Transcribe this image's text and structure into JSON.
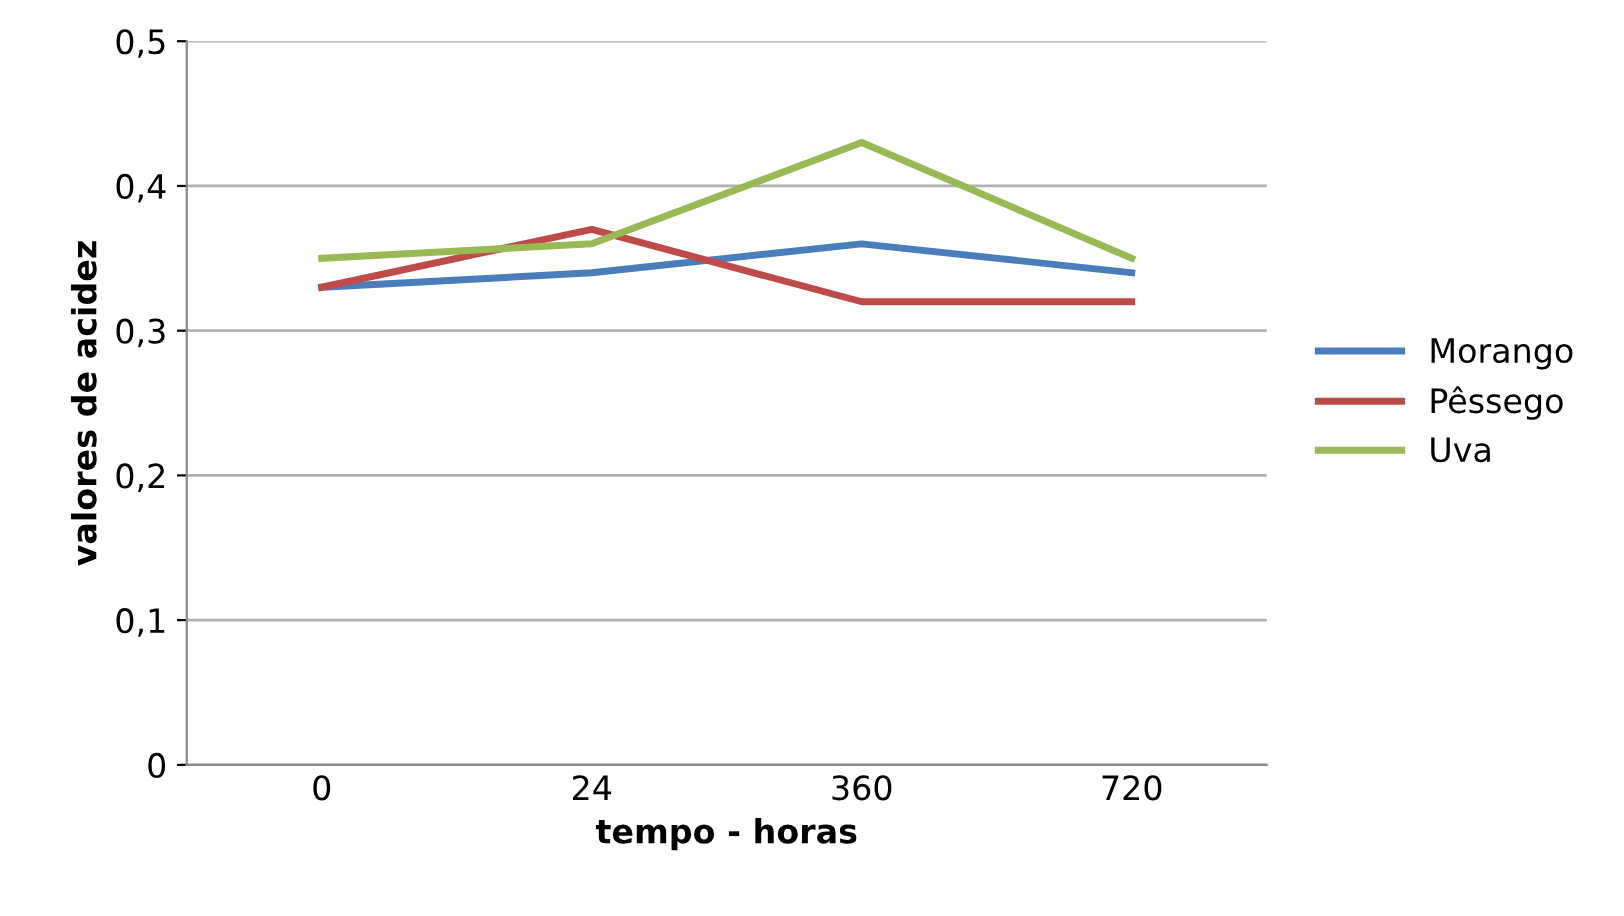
{
  "chart_data": {
    "type": "line",
    "xlabel": "tempo - horas",
    "ylabel": "valores de acidez",
    "categories": [
      "0",
      "24",
      "360",
      "720"
    ],
    "series": [
      {
        "name": "Morango",
        "color": "#4a7ebb",
        "values": [
          0.33,
          0.34,
          0.36,
          0.34
        ]
      },
      {
        "name": "Pêssego",
        "color": "#be4b48",
        "values": [
          0.33,
          0.37,
          0.32,
          0.32
        ]
      },
      {
        "name": "Uva",
        "color": "#98b954",
        "values": [
          0.35,
          0.36,
          0.43,
          0.35
        ]
      }
    ],
    "ylim": [
      0,
      0.5
    ],
    "yticks": [
      0,
      {
        "value": 0.1,
        "label": "0,1"
      },
      {
        "value": 0.2,
        "label": "0,2"
      },
      {
        "value": 0.3,
        "label": "0,3"
      },
      {
        "value": 0.4,
        "label": "0,4"
      },
      {
        "value": 0.5,
        "label": "0,5"
      }
    ],
    "grid": "y",
    "legend": "right",
    "marker": "none",
    "line_style": "solid"
  }
}
